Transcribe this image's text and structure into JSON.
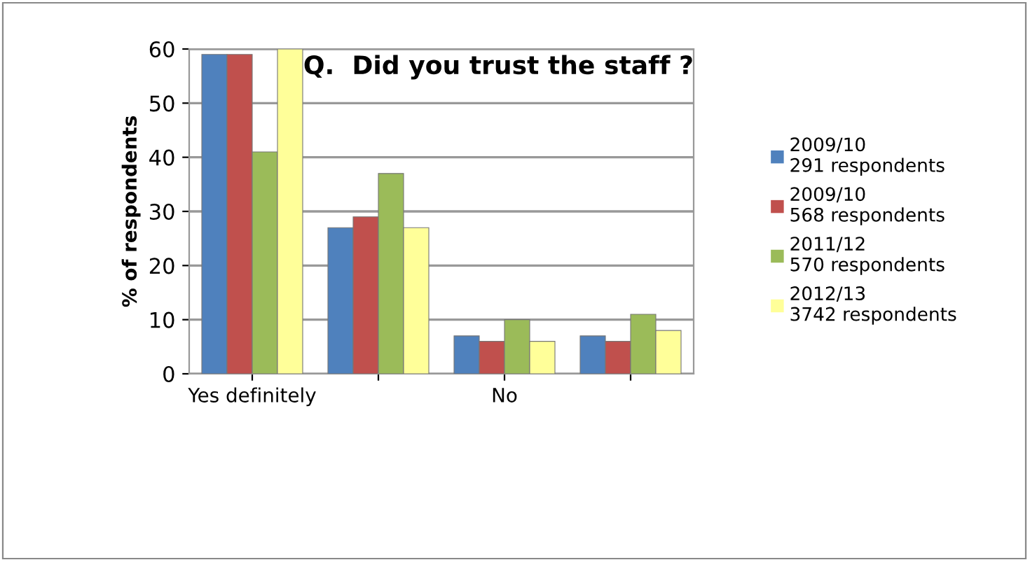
{
  "chart_data": {
    "type": "bar",
    "title": "Q.  Did you trust the staff ?",
    "ylabel": "% of respondents",
    "categories": [
      "Yes definitely",
      null,
      "No",
      null
    ],
    "series": [
      {
        "name": "2009/10\n291 respondents",
        "color": "#4f81bd",
        "values": [
          59,
          27,
          7,
          7
        ]
      },
      {
        "name": "2009/10\n568 respondents",
        "color": "#c0504d",
        "values": [
          59,
          29,
          6,
          6
        ]
      },
      {
        "name": "2011/12\n570 respondents",
        "color": "#9bbb59",
        "values": [
          41,
          37,
          10,
          11
        ]
      },
      {
        "name": "2012/13\n3742 respondents",
        "color": "#ffff99",
        "values": [
          60,
          27,
          6,
          8
        ]
      }
    ],
    "ylim": [
      0,
      60
    ],
    "yticks": [
      0,
      10,
      20,
      30,
      40,
      50,
      60
    ],
    "grid": "y",
    "legend": "right"
  }
}
